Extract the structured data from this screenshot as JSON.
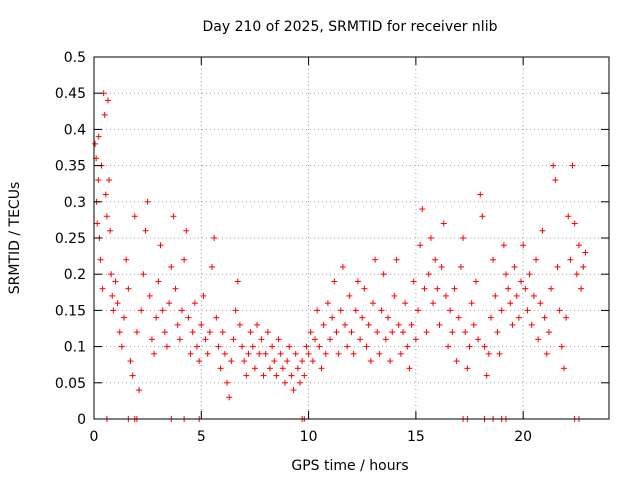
{
  "chart_data": {
    "type": "scatter",
    "title": "Day 210 of 2025, SRMTID for receiver nlib",
    "xlabel": "GPS time / hours",
    "ylabel": "SRMTID / TECUs",
    "xlim": [
      0,
      24
    ],
    "ylim": [
      0,
      0.5
    ],
    "xticks": [
      0,
      5,
      10,
      15,
      20
    ],
    "xtick_labels": [
      "0",
      "5",
      "10",
      "15",
      "20"
    ],
    "yticks": [
      0,
      0.05,
      0.1,
      0.15,
      0.2,
      0.25,
      0.3,
      0.35,
      0.4,
      0.45,
      0.5
    ],
    "ytick_labels": [
      "0",
      "0.05",
      "0.1",
      "0.15",
      "0.2",
      "0.25",
      "0.3",
      "0.35",
      "0.4",
      "0.45",
      "0.5"
    ],
    "grid": true,
    "marker": "plus",
    "color": "#ff0000",
    "series": [
      {
        "name": "SRMTID",
        "points": [
          [
            0.05,
            0.38
          ],
          [
            0.1,
            0.36
          ],
          [
            0.12,
            0.3
          ],
          [
            0.15,
            0.27
          ],
          [
            0.2,
            0.33
          ],
          [
            0.22,
            0.39
          ],
          [
            0.25,
            0.25
          ],
          [
            0.3,
            0.22
          ],
          [
            0.35,
            0.35
          ],
          [
            0.4,
            0.18
          ],
          [
            0.45,
            0.45
          ],
          [
            0.5,
            0.42
          ],
          [
            0.55,
            0.31
          ],
          [
            0.6,
            0.28
          ],
          [
            0.65,
            0.44
          ],
          [
            0.7,
            0.33
          ],
          [
            0.75,
            0.26
          ],
          [
            0.8,
            0.2
          ],
          [
            0.85,
            0.17
          ],
          [
            0.9,
            0.15
          ],
          [
            1.0,
            0.19
          ],
          [
            1.1,
            0.16
          ],
          [
            1.2,
            0.12
          ],
          [
            1.3,
            0.1
          ],
          [
            1.4,
            0.14
          ],
          [
            1.5,
            0.22
          ],
          [
            1.6,
            0.18
          ],
          [
            1.7,
            0.08
          ],
          [
            1.8,
            0.06
          ],
          [
            1.9,
            0.28
          ],
          [
            2.0,
            0.12
          ],
          [
            2.1,
            0.04
          ],
          [
            2.2,
            0.15
          ],
          [
            2.3,
            0.2
          ],
          [
            2.4,
            0.26
          ],
          [
            2.5,
            0.3
          ],
          [
            2.6,
            0.17
          ],
          [
            2.7,
            0.11
          ],
          [
            2.8,
            0.09
          ],
          [
            2.9,
            0.14
          ],
          [
            3.0,
            0.19
          ],
          [
            3.1,
            0.24
          ],
          [
            3.2,
            0.15
          ],
          [
            3.3,
            0.12
          ],
          [
            3.4,
            0.1
          ],
          [
            3.5,
            0.16
          ],
          [
            3.6,
            0.21
          ],
          [
            3.7,
            0.28
          ],
          [
            3.8,
            0.18
          ],
          [
            3.9,
            0.13
          ],
          [
            4.0,
            0.11
          ],
          [
            4.1,
            0.15
          ],
          [
            4.2,
            0.22
          ],
          [
            4.3,
            0.26
          ],
          [
            4.4,
            0.14
          ],
          [
            4.5,
            0.09
          ],
          [
            4.6,
            0.12
          ],
          [
            4.7,
            0.16
          ],
          [
            4.8,
            0.1
          ],
          [
            4.9,
            0.08
          ],
          [
            5.0,
            0.13
          ],
          [
            5.1,
            0.17
          ],
          [
            5.2,
            0.11
          ],
          [
            5.3,
            0.09
          ],
          [
            5.4,
            0.12
          ],
          [
            5.5,
            0.21
          ],
          [
            5.6,
            0.25
          ],
          [
            5.7,
            0.14
          ],
          [
            5.8,
            0.1
          ],
          [
            5.9,
            0.07
          ],
          [
            6.0,
            0.12
          ],
          [
            6.1,
            0.09
          ],
          [
            6.2,
            0.05
          ],
          [
            6.3,
            0.03
          ],
          [
            6.4,
            0.08
          ],
          [
            6.5,
            0.11
          ],
          [
            6.6,
            0.15
          ],
          [
            6.7,
            0.19
          ],
          [
            6.8,
            0.13
          ],
          [
            6.9,
            0.1
          ],
          [
            7.0,
            0.08
          ],
          [
            7.1,
            0.06
          ],
          [
            7.2,
            0.09
          ],
          [
            7.3,
            0.12
          ],
          [
            7.4,
            0.1
          ],
          [
            7.5,
            0.07
          ],
          [
            7.6,
            0.13
          ],
          [
            7.7,
            0.09
          ],
          [
            7.8,
            0.11
          ],
          [
            7.9,
            0.06
          ],
          [
            8.0,
            0.09
          ],
          [
            8.1,
            0.12
          ],
          [
            8.2,
            0.07
          ],
          [
            8.3,
            0.1
          ],
          [
            8.4,
            0.08
          ],
          [
            8.5,
            0.06
          ],
          [
            8.6,
            0.11
          ],
          [
            8.7,
            0.09
          ],
          [
            8.8,
            0.07
          ],
          [
            8.9,
            0.05
          ],
          [
            9.0,
            0.08
          ],
          [
            9.1,
            0.1
          ],
          [
            9.2,
            0.06
          ],
          [
            9.3,
            0.04
          ],
          [
            9.4,
            0.09
          ],
          [
            9.5,
            0.07
          ],
          [
            9.6,
            0.05
          ],
          [
            9.7,
            0.08
          ],
          [
            9.8,
            0.06
          ],
          [
            9.9,
            0.1
          ],
          [
            10.0,
            0.09
          ],
          [
            10.1,
            0.12
          ],
          [
            10.2,
            0.08
          ],
          [
            10.3,
            0.11
          ],
          [
            10.4,
            0.15
          ],
          [
            10.5,
            0.1
          ],
          [
            10.6,
            0.07
          ],
          [
            10.7,
            0.13
          ],
          [
            10.8,
            0.09
          ],
          [
            10.9,
            0.16
          ],
          [
            11.0,
            0.11
          ],
          [
            11.1,
            0.14
          ],
          [
            11.2,
            0.19
          ],
          [
            11.3,
            0.12
          ],
          [
            11.4,
            0.09
          ],
          [
            11.5,
            0.15
          ],
          [
            11.6,
            0.21
          ],
          [
            11.7,
            0.13
          ],
          [
            11.8,
            0.1
          ],
          [
            11.9,
            0.17
          ],
          [
            12.0,
            0.12
          ],
          [
            12.1,
            0.09
          ],
          [
            12.2,
            0.15
          ],
          [
            12.3,
            0.19
          ],
          [
            12.4,
            0.11
          ],
          [
            12.5,
            0.14
          ],
          [
            12.6,
            0.18
          ],
          [
            12.7,
            0.1
          ],
          [
            12.8,
            0.13
          ],
          [
            12.9,
            0.08
          ],
          [
            13.0,
            0.16
          ],
          [
            13.1,
            0.22
          ],
          [
            13.2,
            0.12
          ],
          [
            13.3,
            0.09
          ],
          [
            13.4,
            0.15
          ],
          [
            13.5,
            0.2
          ],
          [
            13.6,
            0.11
          ],
          [
            13.7,
            0.14
          ],
          [
            13.8,
            0.08
          ],
          [
            13.9,
            0.12
          ],
          [
            14.0,
            0.17
          ],
          [
            14.1,
            0.22
          ],
          [
            14.2,
            0.13
          ],
          [
            14.3,
            0.09
          ],
          [
            14.4,
            0.12
          ],
          [
            14.5,
            0.16
          ],
          [
            14.6,
            0.1
          ],
          [
            14.7,
            0.07
          ],
          [
            14.8,
            0.13
          ],
          [
            14.9,
            0.19
          ],
          [
            15.0,
            0.11
          ],
          [
            15.1,
            0.15
          ],
          [
            15.2,
            0.24
          ],
          [
            15.3,
            0.29
          ],
          [
            15.4,
            0.18
          ],
          [
            15.5,
            0.12
          ],
          [
            15.6,
            0.2
          ],
          [
            15.7,
            0.25
          ],
          [
            15.8,
            0.16
          ],
          [
            15.9,
            0.22
          ],
          [
            16.0,
            0.18
          ],
          [
            16.1,
            0.13
          ],
          [
            16.2,
            0.21
          ],
          [
            16.3,
            0.27
          ],
          [
            16.4,
            0.17
          ],
          [
            16.5,
            0.1
          ],
          [
            16.6,
            0.15
          ],
          [
            16.7,
            0.12
          ],
          [
            16.8,
            0.18
          ],
          [
            16.9,
            0.08
          ],
          [
            17.0,
            0.14
          ],
          [
            17.1,
            0.21
          ],
          [
            17.2,
            0.25
          ],
          [
            17.3,
            0.12
          ],
          [
            17.4,
            0.07
          ],
          [
            17.5,
            0.1
          ],
          [
            17.6,
            0.16
          ],
          [
            17.7,
            0.13
          ],
          [
            17.8,
            0.19
          ],
          [
            17.9,
            0.11
          ],
          [
            18.0,
            0.31
          ],
          [
            18.1,
            0.28
          ],
          [
            18.2,
            0.1
          ],
          [
            18.3,
            0.06
          ],
          [
            18.4,
            0.09
          ],
          [
            18.5,
            0.14
          ],
          [
            18.6,
            0.22
          ],
          [
            18.7,
            0.17
          ],
          [
            18.8,
            0.12
          ],
          [
            18.9,
            0.09
          ],
          [
            19.0,
            0.15
          ],
          [
            19.1,
            0.24
          ],
          [
            19.2,
            0.2
          ],
          [
            19.3,
            0.18
          ],
          [
            19.4,
            0.16
          ],
          [
            19.5,
            0.13
          ],
          [
            19.6,
            0.21
          ],
          [
            19.7,
            0.17
          ],
          [
            19.8,
            0.14
          ],
          [
            19.9,
            0.19
          ],
          [
            20.0,
            0.24
          ],
          [
            20.1,
            0.18
          ],
          [
            20.2,
            0.15
          ],
          [
            20.3,
            0.2
          ],
          [
            20.4,
            0.13
          ],
          [
            20.5,
            0.17
          ],
          [
            20.6,
            0.22
          ],
          [
            20.7,
            0.11
          ],
          [
            20.8,
            0.16
          ],
          [
            20.9,
            0.26
          ],
          [
            21.0,
            0.14
          ],
          [
            21.1,
            0.09
          ],
          [
            21.2,
            0.12
          ],
          [
            21.3,
            0.18
          ],
          [
            21.4,
            0.35
          ],
          [
            21.5,
            0.33
          ],
          [
            21.6,
            0.21
          ],
          [
            21.7,
            0.15
          ],
          [
            21.8,
            0.1
          ],
          [
            21.9,
            0.07
          ],
          [
            22.0,
            0.14
          ],
          [
            22.1,
            0.28
          ],
          [
            22.2,
            0.22
          ],
          [
            22.3,
            0.35
          ],
          [
            22.4,
            0.27
          ],
          [
            22.5,
            0.2
          ],
          [
            22.6,
            0.24
          ],
          [
            22.7,
            0.18
          ],
          [
            22.8,
            0.21
          ],
          [
            22.9,
            0.23
          ],
          [
            0.6,
            0
          ],
          [
            1.6,
            0
          ],
          [
            1.9,
            0
          ],
          [
            2.0,
            0
          ],
          [
            3.6,
            0
          ],
          [
            4.2,
            0
          ],
          [
            4.9,
            0
          ],
          [
            9.7,
            0
          ],
          [
            9.8,
            0
          ],
          [
            17.2,
            0
          ],
          [
            17.4,
            0
          ],
          [
            18.2,
            0
          ],
          [
            18.6,
            0
          ],
          [
            19.0,
            0
          ],
          [
            19.2,
            0
          ],
          [
            22.4,
            0
          ],
          [
            22.6,
            0
          ]
        ]
      }
    ]
  }
}
